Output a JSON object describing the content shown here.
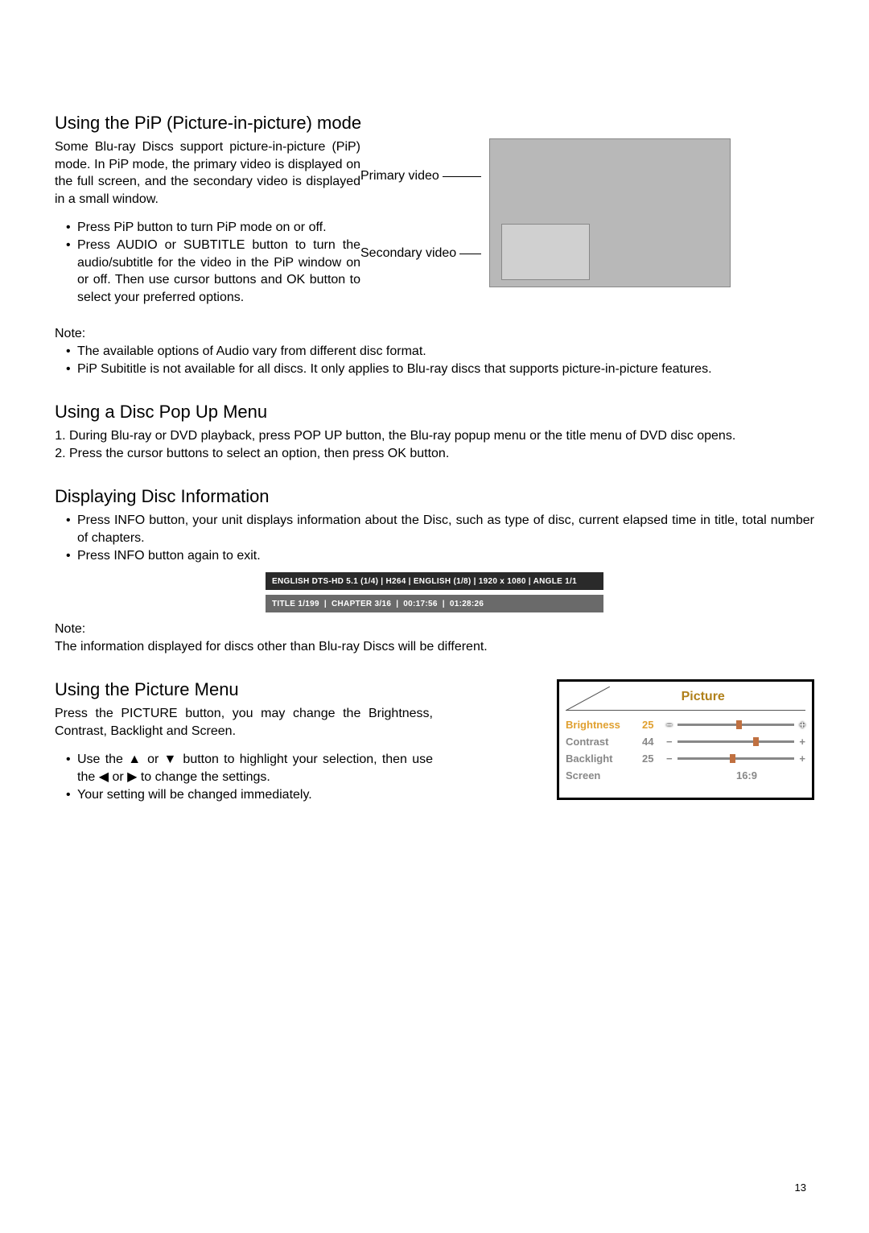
{
  "page_number": "13",
  "pip": {
    "heading": "Using the PiP (Picture-in-picture) mode",
    "intro": "Some Blu-ray Discs support picture-in-picture (PiP) mode. In PiP mode, the primary video is displayed on the full screen, and the secondary video is displayed in a small window.",
    "bullets": [
      "Press PiP button to turn PiP mode on or off.",
      "Press AUDIO or SUBTITLE button to turn the audio/subtitle for the video in the PiP window on or off. Then use cursor buttons and OK button to select your preferred options."
    ],
    "label_primary": "Primary video",
    "label_secondary": "Secondary video",
    "note_label": "Note:",
    "notes": [
      "The available options of Audio vary from different disc format.",
      "PiP Subititle is not available for all discs. It only applies to Blu-ray discs that supports picture-in-picture features."
    ]
  },
  "popup": {
    "heading": "Using a Disc Pop Up Menu",
    "steps": [
      "During Blu-ray or DVD playback, press POP UP button, the Blu-ray popup menu or the title menu of DVD disc opens.",
      "Press the cursor buttons to select an option, then press OK button."
    ]
  },
  "discinfo": {
    "heading": "Displaying Disc Information",
    "bullets": [
      "Press INFO button, your unit displays information about the Disc, such as type of disc, current elapsed time in title, total number of chapters.",
      "Press INFO button again to exit."
    ],
    "bar1": "ENGLISH DTS-HD 5.1 (1/4)  |  H264  |  ENGLISH (1/8)  |  1920 x 1080  | ANGLE 1/1",
    "bar2_items": [
      "TITLE 1/199",
      "|",
      "CHAPTER 3/16",
      "|",
      "00:17:56",
      "|",
      "01:28:26"
    ],
    "note_label": "Note:",
    "note_text": "The information displayed for discs other than Blu-ray Discs will be different."
  },
  "picmenu": {
    "heading": "Using the Picture Menu",
    "intro": "Press the PICTURE button, you may change the Brightness, Contrast, Backlight and Screen.",
    "bullets": [
      "Use the ▲ or ▼ button to highlight your selection, then use the ◀ or ▶  to change the settings.",
      "Your setting will be changed immediately."
    ],
    "menu_title": "Picture",
    "rows": [
      {
        "label": "Brightness",
        "value": "25",
        "percent": 50,
        "selected": true
      },
      {
        "label": "Contrast",
        "value": "44",
        "percent": 65,
        "selected": false
      },
      {
        "label": "Backlight",
        "value": "25",
        "percent": 45,
        "selected": false
      }
    ],
    "screen_label": "Screen",
    "screen_value": "16:9"
  }
}
